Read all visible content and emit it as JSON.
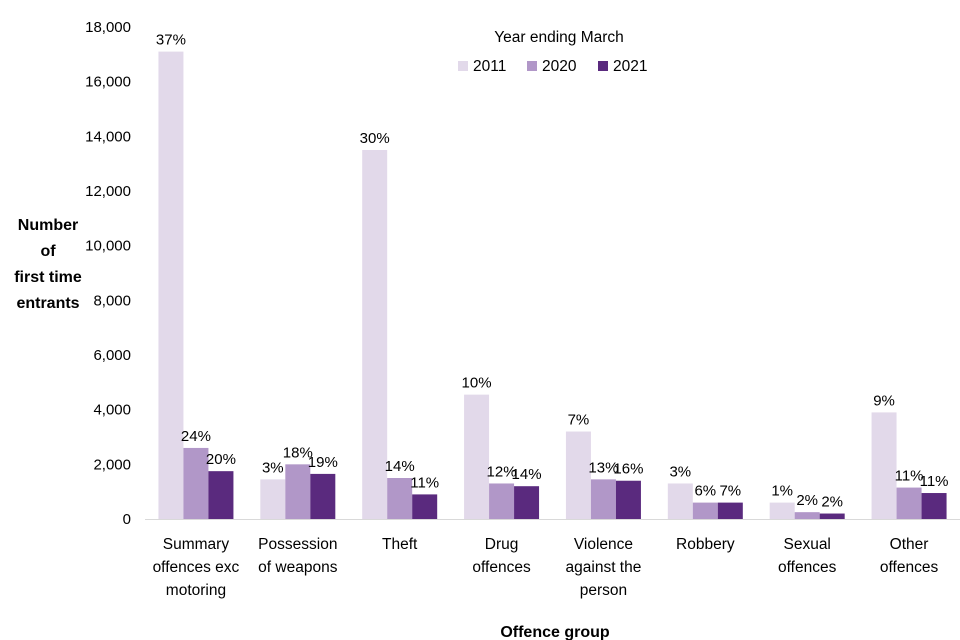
{
  "chart_data": {
    "type": "bar",
    "ylabel_lines": [
      "Number",
      "of",
      "first time",
      "entrants"
    ],
    "xlabel": "Offence group",
    "ylim": [
      0,
      18000
    ],
    "yticks": [
      0,
      2000,
      4000,
      6000,
      8000,
      10000,
      12000,
      14000,
      16000,
      18000
    ],
    "ytick_labels": [
      "0",
      "2,000",
      "4,000",
      "6,000",
      "8,000",
      "10,000",
      "12,000",
      "14,000",
      "16,000",
      "18,000"
    ],
    "grid": false,
    "legend": {
      "title": "Year ending March",
      "position": "top-right"
    },
    "categories": [
      [
        "Summary",
        "offences exc",
        "motoring"
      ],
      [
        "Possession",
        "of weapons"
      ],
      [
        "Theft"
      ],
      [
        "Drug",
        "offences"
      ],
      [
        "Violence",
        "against the",
        "person"
      ],
      [
        "Robbery"
      ],
      [
        "Sexual",
        "offences"
      ],
      [
        "Other",
        "offences"
      ]
    ],
    "series": [
      {
        "name": "2011",
        "color": "#e2d9ea",
        "values": [
          17100,
          1450,
          13500,
          4550,
          3200,
          1300,
          600,
          3900
        ],
        "labels": [
          "37%",
          "3%",
          "30%",
          "10%",
          "7%",
          "3%",
          "1%",
          "9%"
        ]
      },
      {
        "name": "2020",
        "color": "#b197c8",
        "values": [
          2600,
          2000,
          1500,
          1300,
          1450,
          600,
          250,
          1150
        ],
        "labels": [
          "24%",
          "18%",
          "14%",
          "12%",
          "13%",
          "6%",
          "2%",
          "11%"
        ]
      },
      {
        "name": "2021",
        "color": "#5a2a7e",
        "values": [
          1750,
          1650,
          900,
          1200,
          1400,
          600,
          200,
          950
        ],
        "labels": [
          "20%",
          "19%",
          "11%",
          "14%",
          "16%",
          "7%",
          "2%",
          "11%"
        ]
      }
    ]
  }
}
